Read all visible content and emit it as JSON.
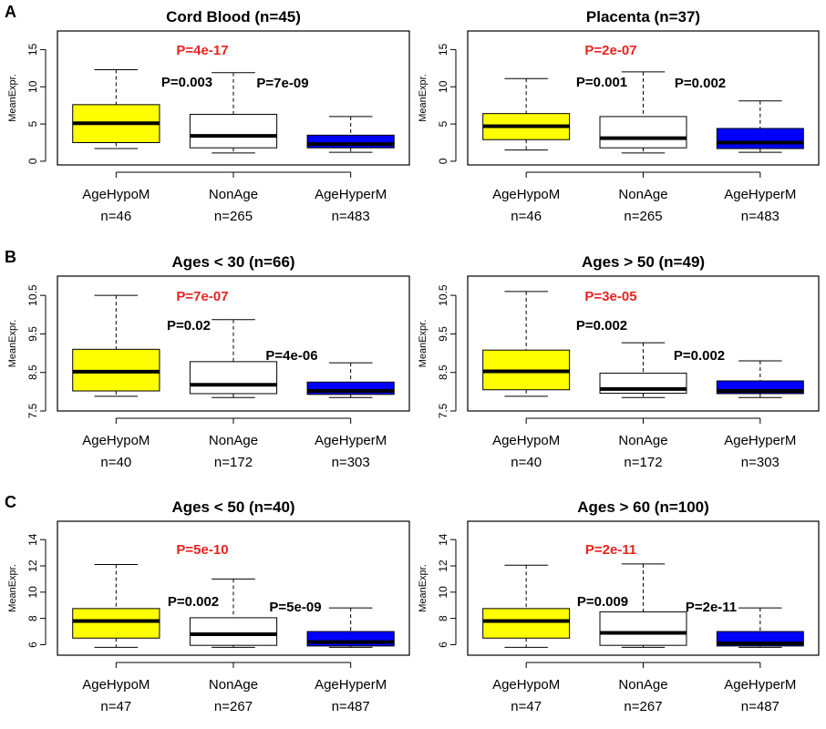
{
  "figure": {
    "row_labels": [
      "A",
      "B",
      "C"
    ],
    "colors": {
      "AgeHypoM": "#ffff00",
      "NonAge": "#ffffff",
      "AgeHyperM": "#0000ff",
      "pvalue_red": "#e8231f"
    }
  },
  "chart_data": [
    {
      "type": "box",
      "title": "Cord Blood (n=45)",
      "ylabel": "MeanExpr.",
      "ylim": [
        -0.5,
        17.5
      ],
      "yticks": [
        0,
        5,
        10,
        15
      ],
      "categories": [
        "AgeHypoM",
        "NonAge",
        "AgeHyperM"
      ],
      "counts": [
        "n=46",
        "n=265",
        "n=483"
      ],
      "boxes": [
        {
          "name": "AgeHypoM",
          "min": 1.7,
          "q1": 2.5,
          "median": 5.1,
          "q3": 7.6,
          "max": 12.3
        },
        {
          "name": "NonAge",
          "min": 1.1,
          "q1": 1.8,
          "median": 3.4,
          "q3": 6.3,
          "max": 11.9
        },
        {
          "name": "AgeHyperM",
          "min": 1.2,
          "q1": 1.8,
          "median": 2.3,
          "q3": 3.5,
          "max": 6.0
        }
      ],
      "pvalues": {
        "overall": "P=4e-17",
        "left": "P=0.003",
        "right": "P=7e-09"
      }
    },
    {
      "type": "box",
      "title": "Placenta (n=37)",
      "ylabel": "MeanExpr.",
      "ylim": [
        -0.5,
        17.5
      ],
      "yticks": [
        0,
        5,
        10,
        15
      ],
      "categories": [
        "AgeHypoM",
        "NonAge",
        "AgeHyperM"
      ],
      "counts": [
        "n=46",
        "n=265",
        "n=483"
      ],
      "boxes": [
        {
          "name": "AgeHypoM",
          "min": 1.5,
          "q1": 2.9,
          "median": 4.7,
          "q3": 6.4,
          "max": 11.1
        },
        {
          "name": "NonAge",
          "min": 1.1,
          "q1": 1.8,
          "median": 3.1,
          "q3": 6.0,
          "max": 12.0
        },
        {
          "name": "AgeHyperM",
          "min": 1.2,
          "q1": 1.7,
          "median": 2.5,
          "q3": 4.4,
          "max": 8.1
        }
      ],
      "pvalues": {
        "overall": "P=2e-07",
        "left": "P=0.001",
        "right": "P=0.002"
      }
    },
    {
      "type": "box",
      "title": "Ages < 30 (n=66)",
      "ylabel": "MeanExpr.",
      "ylim": [
        7.5,
        11.0
      ],
      "yticks": [
        7.5,
        8.5,
        9.5,
        10.5
      ],
      "categories": [
        "AgeHypoM",
        "NonAge",
        "AgeHyperM"
      ],
      "counts": [
        "n=40",
        "n=172",
        "n=303"
      ],
      "boxes": [
        {
          "name": "AgeHypoM",
          "min": 7.88,
          "q1": 8.02,
          "median": 8.52,
          "q3": 9.1,
          "max": 10.5
        },
        {
          "name": "NonAge",
          "min": 7.85,
          "q1": 7.95,
          "median": 8.18,
          "q3": 8.78,
          "max": 9.87
        },
        {
          "name": "AgeHyperM",
          "min": 7.85,
          "q1": 7.93,
          "median": 8.02,
          "q3": 8.25,
          "max": 8.75
        }
      ],
      "pvalues": {
        "overall": "P=7e-07",
        "left": "P=0.02",
        "right": "P=4e-06"
      }
    },
    {
      "type": "box",
      "title": "Ages > 50 (n=49)",
      "ylabel": "MeanExpr.",
      "ylim": [
        7.5,
        11.0
      ],
      "yticks": [
        7.5,
        8.5,
        9.5,
        10.5
      ],
      "categories": [
        "AgeHypoM",
        "NonAge",
        "AgeHyperM"
      ],
      "counts": [
        "n=40",
        "n=172",
        "n=303"
      ],
      "boxes": [
        {
          "name": "AgeHypoM",
          "min": 7.88,
          "q1": 8.05,
          "median": 8.53,
          "q3": 9.08,
          "max": 10.6
        },
        {
          "name": "NonAge",
          "min": 7.85,
          "q1": 7.96,
          "median": 8.07,
          "q3": 8.48,
          "max": 9.27
        },
        {
          "name": "AgeHyperM",
          "min": 7.85,
          "q1": 7.95,
          "median": 8.02,
          "q3": 8.28,
          "max": 8.8
        }
      ],
      "pvalues": {
        "overall": "P=3e-05",
        "left": "P=0.002",
        "right": "P=0.002"
      }
    },
    {
      "type": "box",
      "title": "Ages < 50 (n=40)",
      "ylabel": "MeanExpr.",
      "ylim": [
        5.2,
        15.4
      ],
      "yticks": [
        6,
        8,
        10,
        12,
        14
      ],
      "categories": [
        "AgeHypoM",
        "NonAge",
        "AgeHyperM"
      ],
      "counts": [
        "n=47",
        "n=267",
        "n=487"
      ],
      "boxes": [
        {
          "name": "AgeHypoM",
          "min": 5.8,
          "q1": 6.5,
          "median": 7.8,
          "q3": 8.75,
          "max": 12.1
        },
        {
          "name": "NonAge",
          "min": 5.8,
          "q1": 5.95,
          "median": 6.8,
          "q3": 8.05,
          "max": 11.0
        },
        {
          "name": "AgeHyperM",
          "min": 5.8,
          "q1": 5.9,
          "median": 6.2,
          "q3": 7.0,
          "max": 8.8
        }
      ],
      "pvalues": {
        "overall": "P=5e-10",
        "left": "P=0.002",
        "right": "P=5e-09"
      }
    },
    {
      "type": "box",
      "title": "Ages > 60 (n=100)",
      "ylabel": "MeanExpr.",
      "ylim": [
        5.2,
        15.4
      ],
      "yticks": [
        6,
        8,
        10,
        12,
        14
      ],
      "categories": [
        "AgeHypoM",
        "NonAge",
        "AgeHyperM"
      ],
      "counts": [
        "n=47",
        "n=267",
        "n=487"
      ],
      "boxes": [
        {
          "name": "AgeHypoM",
          "min": 5.8,
          "q1": 6.5,
          "median": 7.8,
          "q3": 8.75,
          "max": 12.05
        },
        {
          "name": "NonAge",
          "min": 5.8,
          "q1": 5.95,
          "median": 6.9,
          "q3": 8.5,
          "max": 12.15
        },
        {
          "name": "AgeHyperM",
          "min": 5.8,
          "q1": 5.9,
          "median": 6.1,
          "q3": 7.0,
          "max": 8.8
        }
      ],
      "pvalues": {
        "overall": "P=2e-11",
        "left": "P=0.009",
        "right": "P=2e-11"
      }
    }
  ]
}
